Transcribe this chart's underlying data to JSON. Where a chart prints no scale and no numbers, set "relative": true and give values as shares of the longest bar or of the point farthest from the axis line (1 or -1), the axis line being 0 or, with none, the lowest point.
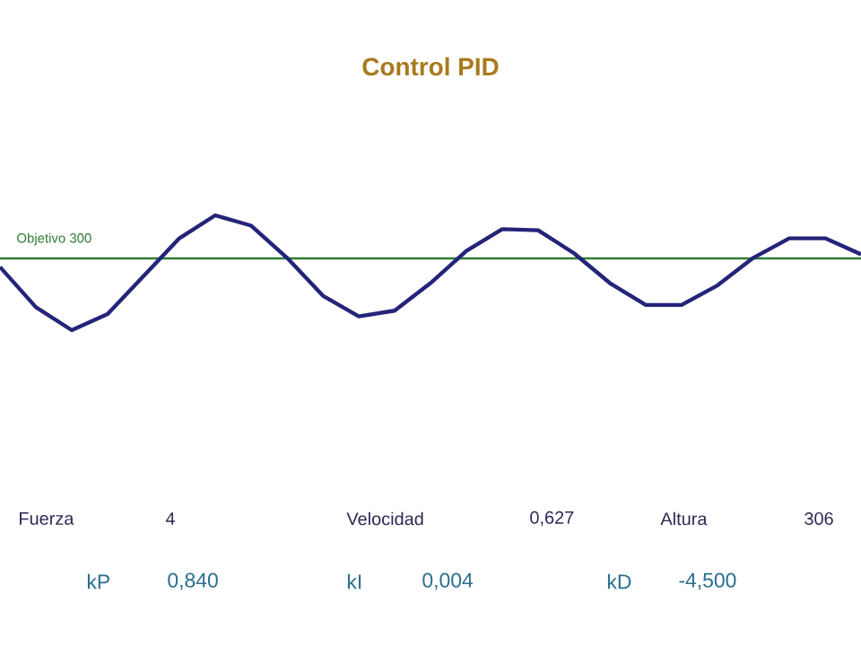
{
  "chart_data": {
    "type": "line",
    "title": "Control PID",
    "relative": true,
    "categories": [
      null,
      null,
      null,
      null,
      null,
      null,
      null,
      null,
      null,
      null,
      null,
      null,
      null,
      null,
      null,
      null,
      null,
      null,
      null,
      null,
      null,
      null,
      null,
      null,
      null
    ],
    "series": [
      {
        "color": "#24247a",
        "values": [
          0.55,
          0.2,
          0,
          0.14,
          0.47,
          0.8,
          1,
          0.91,
          0.63,
          0.3,
          0.12,
          0.17,
          0.41,
          0.69,
          0.88,
          0.87,
          0.67,
          0.41,
          0.22,
          0.22,
          0.39,
          0.63,
          0.8,
          0.8,
          0.66
        ]
      }
    ],
    "ref_lines": [
      {
        "axis": "y",
        "value": 0.625,
        "label": "Objetivo 300",
        "color": "#2e7d32"
      }
    ],
    "annotations": [
      "Fuerza",
      "4",
      "Velocidad",
      "0,627",
      "Altura",
      "306",
      "kP",
      "0,840",
      "kI",
      "0,004",
      "kD",
      "-4,500"
    ]
  }
}
